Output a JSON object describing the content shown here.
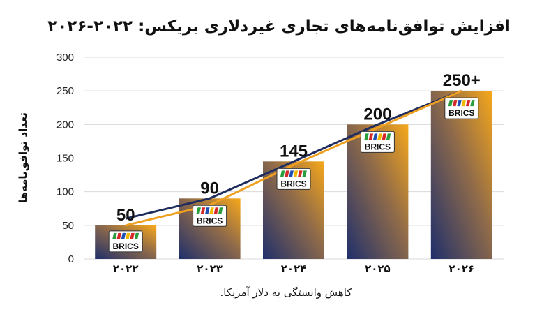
{
  "chart_data": {
    "type": "bar",
    "title": "افزایش توافق‌نامه‌های تجاری غیردلاری بریکس: ۲۰۲۲-۲۰۲۶",
    "xlabel": "کاهش وابستگی به دلار آمریکا.",
    "ylabel": "تعداد توافق‌نامه‌ها",
    "categories": [
      "۲۰۲۲",
      "۲۰۲۳",
      "۲۰۲۴",
      "۲۰۲۵",
      "۲۰۲۶"
    ],
    "values": [
      50,
      90,
      145,
      200,
      250
    ],
    "data_labels": [
      "50",
      "90",
      "145",
      "200",
      "250+"
    ],
    "ylim": [
      0,
      300
    ],
    "yticks": [
      0,
      50,
      100,
      150,
      200,
      250,
      300
    ],
    "grid": true,
    "bar_logo_text": "BRICS",
    "trend_lines": [
      {
        "color": "#1e2d5e",
        "values": [
          60,
          90,
          145,
          200,
          250
        ]
      },
      {
        "color": "#f0a020",
        "values": [
          50,
          80,
          140,
          195,
          250
        ]
      }
    ],
    "colors": {
      "bar_top": "#f7a81b",
      "bar_bottom": "#1f2f6b",
      "grid": "#d9d9d9",
      "flag_red": "#d62828",
      "flag_green": "#2a9d3c",
      "flag_yellow": "#f2b700",
      "flag_blue": "#1f4fb0"
    }
  }
}
